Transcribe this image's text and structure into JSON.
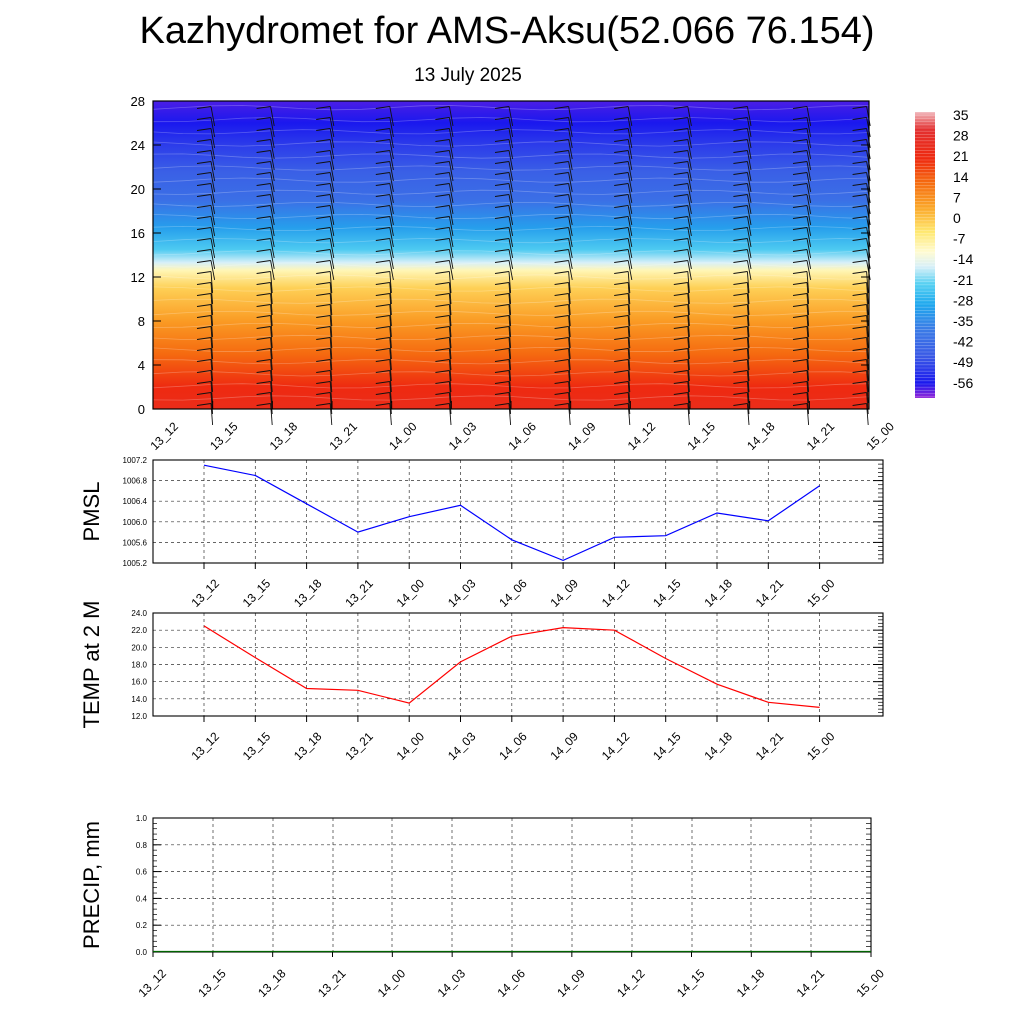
{
  "title": "Kazhydromet for AMS-Aksu(52.066 76.154)",
  "subtitle": "13 July 2025",
  "chart_data": [
    {
      "type": "heatmap",
      "name": "temperature-profile",
      "x_labels": [
        "13_12",
        "13_15",
        "13_18",
        "13_21",
        "14_00",
        "14_03",
        "14_06",
        "14_09",
        "14_12",
        "14_15",
        "14_18",
        "14_21",
        "15_00"
      ],
      "y_ticks": [
        "0",
        "4",
        "8",
        "12",
        "16",
        "20",
        "24",
        "28"
      ],
      "ylim": [
        0,
        28
      ],
      "colorbar_labels": [
        "35",
        "28",
        "21",
        "14",
        "7",
        "0",
        "-7",
        "-14",
        "-21",
        "-28",
        "-35",
        "-42",
        "-49",
        "-56"
      ],
      "colorbar_stops": [
        {
          "value": 38,
          "color": "#f1b8bd"
        },
        {
          "value": 32,
          "color": "#e33030"
        },
        {
          "value": 22,
          "color": "#ee2a10"
        },
        {
          "value": 14,
          "color": "#f56a10"
        },
        {
          "value": 5,
          "color": "#fba92a"
        },
        {
          "value": -3,
          "color": "#ffe870"
        },
        {
          "value": -10,
          "color": "#fffbd2"
        },
        {
          "value": -15,
          "color": "#d8f0f8"
        },
        {
          "value": -21,
          "color": "#55d0f2"
        },
        {
          "value": -28,
          "color": "#1fa8ee"
        },
        {
          "value": -36,
          "color": "#3b7ee6"
        },
        {
          "value": -46,
          "color": "#3a58e6"
        },
        {
          "value": -55,
          "color": "#1a18ee"
        },
        {
          "value": -60,
          "color": "#9528d8"
        }
      ],
      "profile": [
        {
          "h": 0,
          "t": 25
        },
        {
          "h": 2,
          "t": 22
        },
        {
          "h": 5,
          "t": 14
        },
        {
          "h": 8,
          "t": 7
        },
        {
          "h": 11,
          "t": 0
        },
        {
          "h": 12.6,
          "t": -8
        },
        {
          "h": 13.3,
          "t": -15
        },
        {
          "h": 14.5,
          "t": -22
        },
        {
          "h": 16.5,
          "t": -30
        },
        {
          "h": 19,
          "t": -40
        },
        {
          "h": 21.5,
          "t": -44
        },
        {
          "h": 24,
          "t": -50
        },
        {
          "h": 26,
          "t": -55
        },
        {
          "h": 28,
          "t": -57
        }
      ]
    },
    {
      "type": "line",
      "name": "pmsl",
      "ylabel": "PMSL",
      "x": [
        "13_12",
        "13_15",
        "13_18",
        "13_21",
        "14_00",
        "14_03",
        "14_06",
        "14_09",
        "14_12",
        "14_15",
        "14_18",
        "14_21",
        "15_00"
      ],
      "values": [
        1007.1,
        1006.9,
        1006.35,
        1005.8,
        1006.1,
        1006.32,
        1005.65,
        1005.25,
        1005.7,
        1005.73,
        1006.17,
        1006.02,
        1006.7
      ],
      "ylim": [
        1005.2,
        1007.2
      ],
      "y_ticks": [
        "1005.2",
        "1005.6",
        "1006.0",
        "1006.4",
        "1006.8",
        "1007.2"
      ],
      "color": "#0000ff"
    },
    {
      "type": "line",
      "name": "temp-2m",
      "ylabel": "TEMP at 2 M",
      "x": [
        "13_12",
        "13_15",
        "13_18",
        "13_21",
        "14_00",
        "14_03",
        "14_06",
        "14_09",
        "14_12",
        "14_15",
        "14_18",
        "14_21",
        "15_00"
      ],
      "values": [
        22.5,
        18.8,
        15.2,
        15.0,
        13.5,
        18.3,
        21.3,
        22.3,
        22.0,
        18.7,
        15.7,
        13.6,
        13.0
      ],
      "ylim": [
        12.0,
        24.0
      ],
      "y_ticks": [
        "12.0",
        "14.0",
        "16.0",
        "18.0",
        "20.0",
        "22.0",
        "24.0"
      ],
      "color": "#ff0000"
    },
    {
      "type": "line",
      "name": "precip",
      "ylabel": "PRECIP, mm",
      "x": [
        "13_12",
        "13_15",
        "13_18",
        "13_21",
        "14_00",
        "14_03",
        "14_06",
        "14_09",
        "14_12",
        "14_15",
        "14_18",
        "14_21",
        "15_00"
      ],
      "values": [
        0,
        0,
        0,
        0,
        0,
        0,
        0,
        0,
        0,
        0,
        0,
        0,
        0
      ],
      "ylim": [
        0.0,
        1.0
      ],
      "y_ticks": [
        "0.0",
        "0.2",
        "0.4",
        "0.6",
        "0.8",
        "1.0"
      ],
      "color": "#006400"
    }
  ]
}
